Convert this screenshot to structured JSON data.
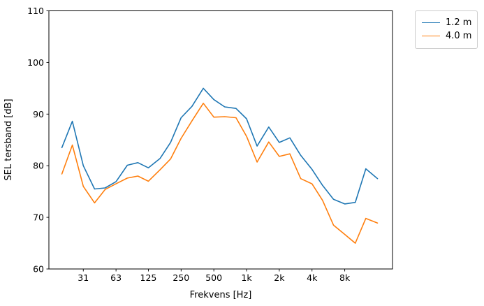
{
  "chart_data": {
    "type": "line",
    "title": "",
    "xlabel": "Frekvens [Hz]",
    "ylabel": "SEL tersband [dB]",
    "x_scale": "log",
    "xlim": [
      15.2,
      22000
    ],
    "ylim": [
      60,
      110
    ],
    "grid": false,
    "legend_position": "outside upper right",
    "x": [
      20,
      25,
      31.5,
      40,
      50,
      63,
      80,
      100,
      125,
      160,
      200,
      250,
      315,
      400,
      500,
      630,
      800,
      1000,
      1250,
      1600,
      2000,
      2500,
      3150,
      4000,
      5000,
      6300,
      8000,
      10000,
      12500,
      16000
    ],
    "x_ticks": [
      {
        "value": 31.5,
        "label": "31"
      },
      {
        "value": 63,
        "label": "63"
      },
      {
        "value": 125,
        "label": "125"
      },
      {
        "value": 250,
        "label": "250"
      },
      {
        "value": 500,
        "label": "500"
      },
      {
        "value": 1000,
        "label": "1k"
      },
      {
        "value": 2000,
        "label": "2k"
      },
      {
        "value": 4000,
        "label": "4k"
      },
      {
        "value": 8000,
        "label": "8k"
      }
    ],
    "y_ticks": [
      60,
      70,
      80,
      90,
      100,
      110
    ],
    "series": [
      {
        "name": "1.2 m",
        "color": "#1f77b4",
        "values": [
          83.5,
          88.6,
          80.0,
          75.5,
          75.7,
          76.9,
          80.1,
          80.6,
          79.6,
          81.4,
          84.5,
          89.3,
          91.5,
          95.0,
          92.8,
          91.4,
          91.1,
          89.1,
          83.8,
          87.5,
          84.5,
          85.4,
          82.0,
          79.3,
          76.2,
          73.5,
          72.6,
          72.9,
          79.4,
          77.5
        ]
      },
      {
        "name": "4.0 m",
        "color": "#ff7f0e",
        "values": [
          78.4,
          84.0,
          76.0,
          72.8,
          75.4,
          76.5,
          77.6,
          78.0,
          77.0,
          79.2,
          81.3,
          85.3,
          88.7,
          92.1,
          89.4,
          89.5,
          89.3,
          85.7,
          80.7,
          84.6,
          81.8,
          82.3,
          77.5,
          76.5,
          73.3,
          68.5,
          66.7,
          65.0,
          69.8,
          68.9
        ]
      }
    ]
  }
}
